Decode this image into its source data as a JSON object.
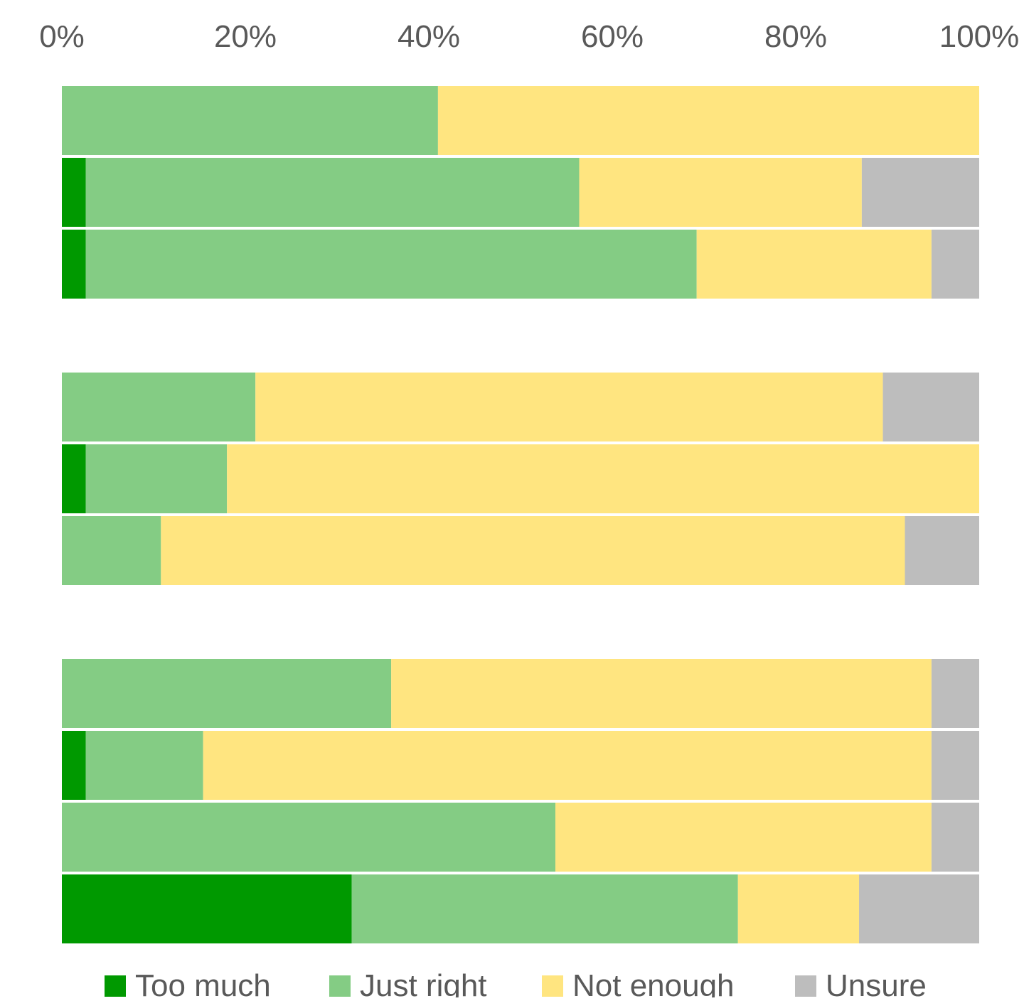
{
  "chart_data": {
    "type": "bar",
    "orientation": "horizontal",
    "stacked": "percent",
    "x_ticks": [
      "0%",
      "20%",
      "40%",
      "60%",
      "80%",
      "100%"
    ],
    "xlim": [
      0,
      100
    ],
    "x_axis_position": "top",
    "grid": false,
    "legend_position": "bottom",
    "groups": [
      {
        "rows": [
          {
            "values": [
              0,
              41,
              59,
              0
            ]
          },
          {
            "values": [
              2.6,
              53.8,
              30.8,
              12.8
            ]
          },
          {
            "values": [
              2.6,
              66.6,
              25.6,
              5.2
            ]
          }
        ]
      },
      {
        "rows": [
          {
            "values": [
              0,
              21.1,
              68.4,
              10.5
            ]
          },
          {
            "values": [
              2.6,
              15.4,
              82.0,
              0
            ]
          },
          {
            "values": [
              0,
              10.8,
              81.1,
              8.1
            ]
          }
        ]
      },
      {
        "rows": [
          {
            "values": [
              0,
              35.9,
              58.9,
              5.2
            ]
          },
          {
            "values": [
              2.6,
              12.8,
              79.4,
              5.2
            ]
          },
          {
            "values": [
              0,
              53.8,
              41.0,
              5.2
            ]
          },
          {
            "values": [
              31.6,
              42.1,
              13.2,
              13.1
            ]
          }
        ]
      }
    ],
    "series": [
      {
        "name": "Too much",
        "color": "#009900"
      },
      {
        "name": "Just right",
        "color": "#84CC84"
      },
      {
        "name": "Not enough",
        "color": "#FFE580"
      },
      {
        "name": "Unsure",
        "color": "#BDBDBD"
      }
    ]
  }
}
